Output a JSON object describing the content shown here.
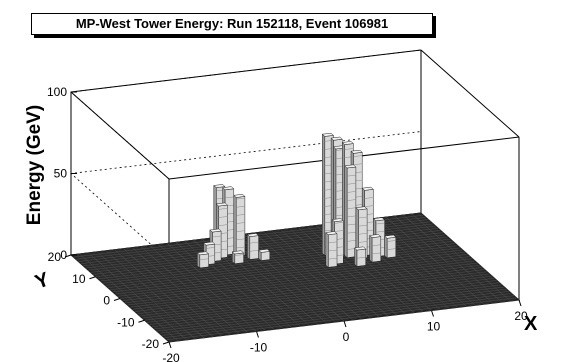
{
  "chart_data": {
    "type": "lego3d",
    "title": "MP-West Tower Energy: Run 152118, Event 106981",
    "xlabel": "X",
    "ylabel": "Y",
    "zlabel": "Energy (GeV)",
    "xlim": [
      -20,
      20
    ],
    "ylim": [
      -20,
      20
    ],
    "zlim": [
      0,
      100
    ],
    "x_ticks": [
      -20,
      -10,
      0,
      10,
      20
    ],
    "y_ticks": [
      -20,
      -10,
      0,
      10,
      20
    ],
    "z_ticks": [
      0,
      50,
      100
    ],
    "grid": true,
    "towers": [
      {
        "x": 6,
        "y": 8,
        "energy": 73
      },
      {
        "x": 7,
        "y": 8,
        "energy": 70
      },
      {
        "x": 8,
        "y": 7,
        "energy": 68
      },
      {
        "x": 9,
        "y": 7,
        "energy": 62
      },
      {
        "x": 7,
        "y": 7,
        "energy": 66
      },
      {
        "x": 8,
        "y": 6,
        "energy": 55
      },
      {
        "x": 10,
        "y": 6,
        "energy": 40
      },
      {
        "x": 6,
        "y": 4,
        "energy": 26
      },
      {
        "x": 5,
        "y": 3,
        "energy": 20
      },
      {
        "x": 9,
        "y": 5,
        "energy": 30
      },
      {
        "x": 11,
        "y": 5,
        "energy": 22
      },
      {
        "x": 12,
        "y": 4,
        "energy": 12
      },
      {
        "x": 10,
        "y": 3,
        "energy": 15
      },
      {
        "x": 8,
        "y": 2,
        "energy": 10
      },
      {
        "x": -5,
        "y": 13,
        "energy": 42
      },
      {
        "x": -4,
        "y": 13,
        "energy": 40
      },
      {
        "x": -3,
        "y": 12,
        "energy": 36
      },
      {
        "x": -5,
        "y": 12,
        "energy": 32
      },
      {
        "x": -6,
        "y": 11,
        "energy": 18
      },
      {
        "x": -7,
        "y": 10,
        "energy": 12
      },
      {
        "x": -2,
        "y": 10,
        "energy": 14
      },
      {
        "x": -8,
        "y": 9,
        "energy": 8
      },
      {
        "x": -4,
        "y": 9,
        "energy": 6
      },
      {
        "x": -1,
        "y": 9,
        "energy": 5
      }
    ]
  }
}
